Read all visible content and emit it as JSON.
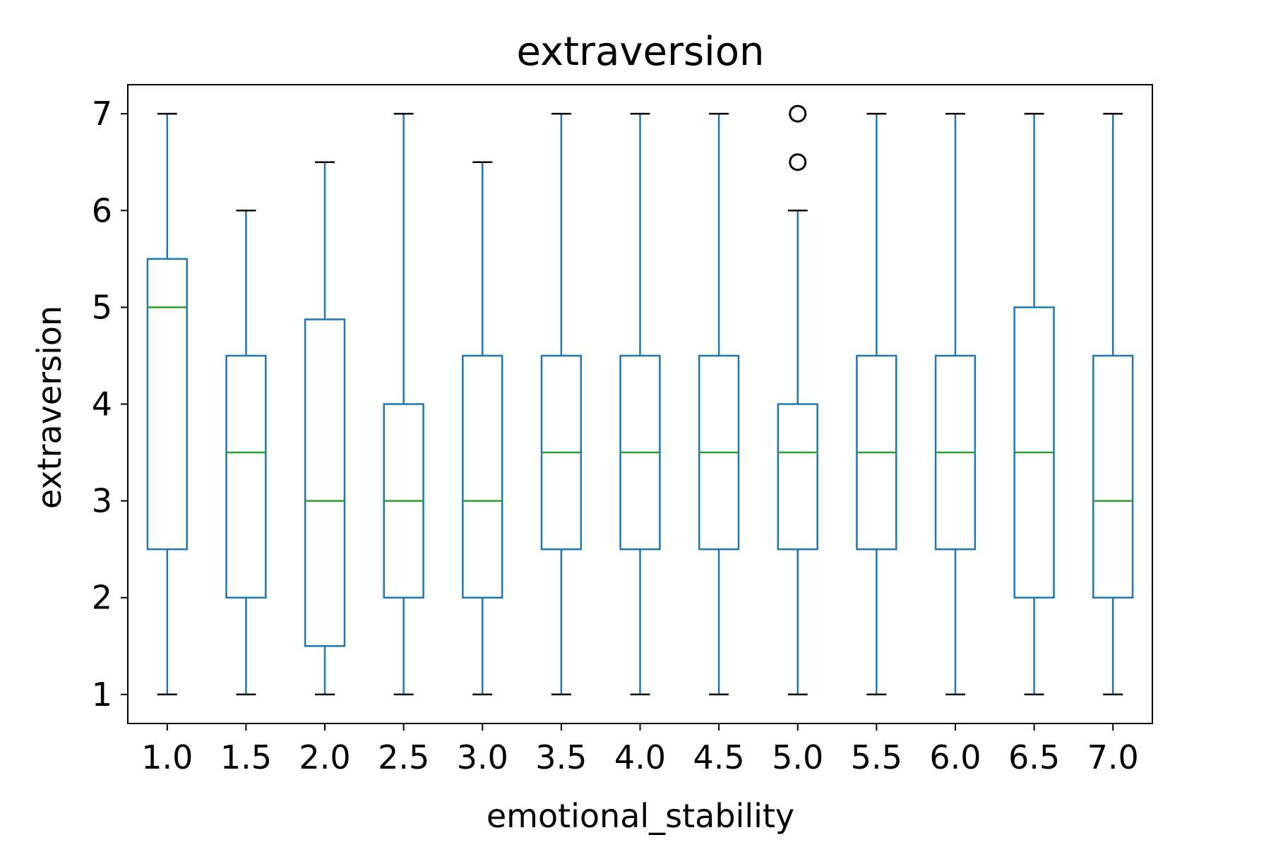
{
  "chart_data": {
    "type": "box",
    "title": "extraversion",
    "xlabel": "emotional_stability",
    "ylabel": "extraversion",
    "ylim": [
      0.7,
      7.3
    ],
    "yticks": [
      1,
      2,
      3,
      4,
      5,
      6,
      7
    ],
    "categories": [
      "1.0",
      "1.5",
      "2.0",
      "2.5",
      "3.0",
      "3.5",
      "4.0",
      "4.5",
      "5.0",
      "5.5",
      "6.0",
      "6.5",
      "7.0"
    ],
    "boxes": [
      {
        "category": "1.0",
        "whisker_low": 1,
        "q1": 2.5,
        "median": 5,
        "q3": 5.5,
        "whisker_high": 7,
        "outliers": []
      },
      {
        "category": "1.5",
        "whisker_low": 1,
        "q1": 2,
        "median": 3.5,
        "q3": 4.5,
        "whisker_high": 6,
        "outliers": []
      },
      {
        "category": "2.0",
        "whisker_low": 1,
        "q1": 1.5,
        "median": 3,
        "q3": 4.875,
        "whisker_high": 6.5,
        "outliers": []
      },
      {
        "category": "2.5",
        "whisker_low": 1,
        "q1": 2,
        "median": 3,
        "q3": 4,
        "whisker_high": 7,
        "outliers": []
      },
      {
        "category": "3.0",
        "whisker_low": 1,
        "q1": 2,
        "median": 3,
        "q3": 4.5,
        "whisker_high": 6.5,
        "outliers": []
      },
      {
        "category": "3.5",
        "whisker_low": 1,
        "q1": 2.5,
        "median": 3.5,
        "q3": 4.5,
        "whisker_high": 7,
        "outliers": []
      },
      {
        "category": "4.0",
        "whisker_low": 1,
        "q1": 2.5,
        "median": 3.5,
        "q3": 4.5,
        "whisker_high": 7,
        "outliers": []
      },
      {
        "category": "4.5",
        "whisker_low": 1,
        "q1": 2.5,
        "median": 3.5,
        "q3": 4.5,
        "whisker_high": 7,
        "outliers": []
      },
      {
        "category": "5.0",
        "whisker_low": 1,
        "q1": 2.5,
        "median": 3.5,
        "q3": 4,
        "whisker_high": 6,
        "outliers": [
          6.5,
          7
        ]
      },
      {
        "category": "5.5",
        "whisker_low": 1,
        "q1": 2.5,
        "median": 3.5,
        "q3": 4.5,
        "whisker_high": 7,
        "outliers": []
      },
      {
        "category": "6.0",
        "whisker_low": 1,
        "q1": 2.5,
        "median": 3.5,
        "q3": 4.5,
        "whisker_high": 7,
        "outliers": []
      },
      {
        "category": "6.5",
        "whisker_low": 1,
        "q1": 2,
        "median": 3.5,
        "q3": 5,
        "whisker_high": 7,
        "outliers": []
      },
      {
        "category": "7.0",
        "whisker_low": 1,
        "q1": 2,
        "median": 3,
        "q3": 4.5,
        "whisker_high": 7,
        "outliers": []
      }
    ],
    "grid": false,
    "legend": "none",
    "colors": {
      "box": "#1f77b4",
      "median": "#2ca02c",
      "cap": "#000000",
      "outlier": "#000000",
      "axes": "#000000",
      "background": "#ffffff"
    }
  }
}
